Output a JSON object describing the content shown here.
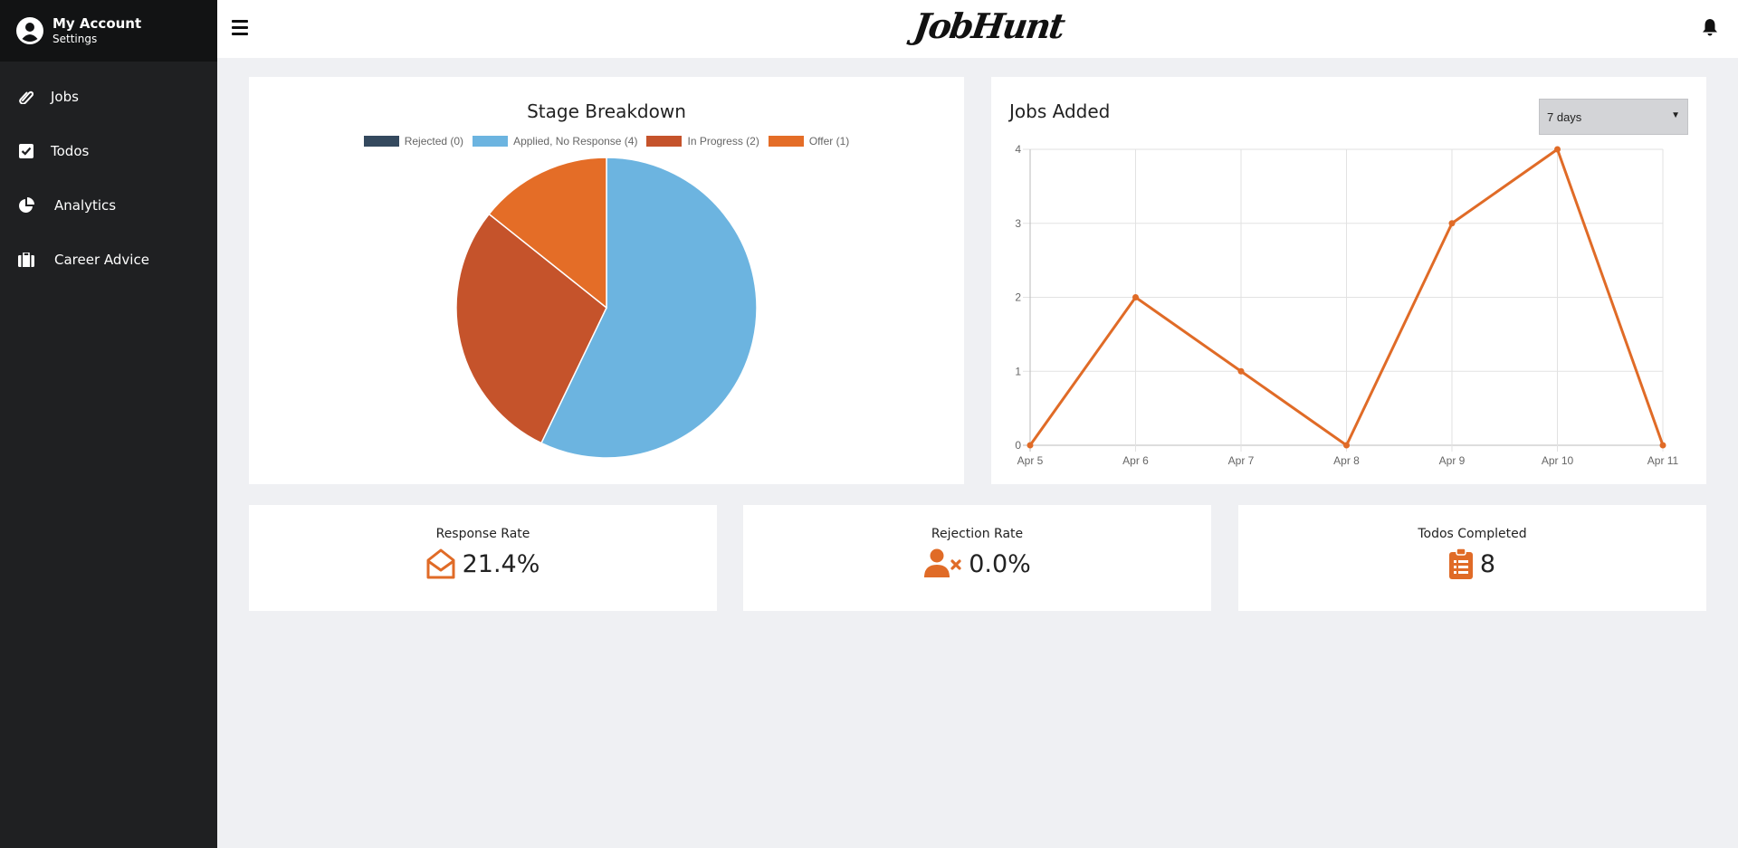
{
  "sidebar": {
    "account": {
      "title": "My Account",
      "subtitle": "Settings"
    },
    "items": [
      {
        "label": "Jobs",
        "icon": "paperclip-icon"
      },
      {
        "label": "Todos",
        "icon": "checkbox-icon"
      },
      {
        "label": "Analytics",
        "icon": "pie-chart-icon"
      },
      {
        "label": "Career Advice",
        "icon": "briefcase-icon"
      }
    ]
  },
  "header": {
    "logo": "JobHunt",
    "menu_icon": "hamburger-icon",
    "notif_icon": "bell-icon"
  },
  "colors": {
    "accent": "#e06b27",
    "rejected": "#34495e",
    "applied": "#6cb4e0",
    "in_progress": "#c5532b",
    "offer": "#e46d27",
    "sidebar": "#1f2022",
    "background": "#eff0f3"
  },
  "stage_breakdown": {
    "title": "Stage Breakdown",
    "legend": [
      {
        "label": "Rejected (0)"
      },
      {
        "label": "Applied, No Response (4)"
      },
      {
        "label": "In Progress (2)"
      },
      {
        "label": "Offer (1)"
      }
    ]
  },
  "jobs_added": {
    "title": "Jobs Added",
    "range": {
      "selected": "7 days"
    }
  },
  "stats": {
    "response": {
      "label": "Response Rate",
      "value": "21.4%",
      "icon": "envelope-open-icon"
    },
    "rejection": {
      "label": "Rejection Rate",
      "value": "0.0%",
      "icon": "user-times-icon"
    },
    "todos": {
      "label": "Todos Completed",
      "value": "8",
      "icon": "clipboard-list-icon"
    }
  },
  "chart_data": [
    {
      "type": "pie",
      "title": "Stage Breakdown",
      "categories": [
        "Rejected",
        "Applied, No Response",
        "In Progress",
        "Offer"
      ],
      "values": [
        0,
        4,
        2,
        1
      ],
      "colors": [
        "#34495e",
        "#6cb4e0",
        "#c5532b",
        "#e46d27"
      ],
      "legend_position": "top"
    },
    {
      "type": "line",
      "title": "Jobs Added",
      "categories": [
        "Apr 5",
        "Apr 6",
        "Apr 7",
        "Apr 8",
        "Apr 9",
        "Apr 10",
        "Apr 11"
      ],
      "values": [
        0,
        2,
        1,
        0,
        3,
        4,
        0
      ],
      "y_ticks": [
        "0",
        "1",
        "2",
        "3",
        "4"
      ],
      "ylim": [
        0,
        4
      ],
      "grid": true,
      "color": "#e06b27"
    }
  ]
}
